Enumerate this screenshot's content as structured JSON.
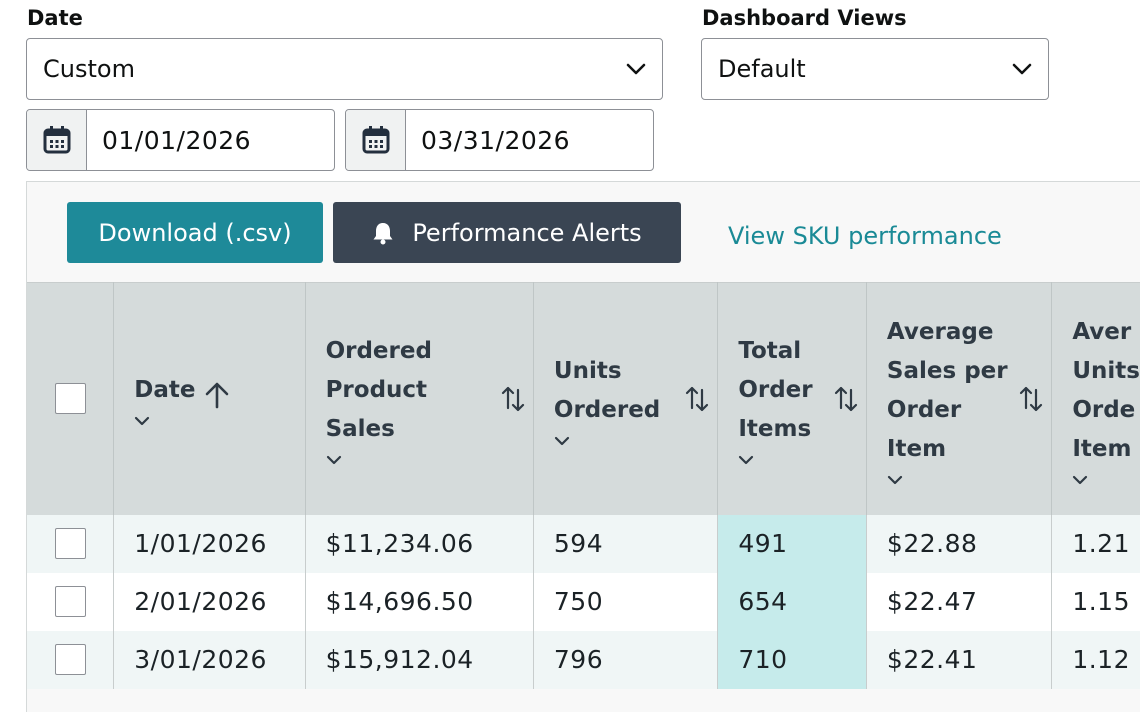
{
  "filters": {
    "date_label": "Date",
    "date_select": "Custom",
    "views_label": "Dashboard Views",
    "views_select": "Default",
    "start_date": "01/01/2026",
    "end_date": "03/31/2026"
  },
  "toolbar": {
    "download_label": "Download (.csv)",
    "alerts_label": "Performance Alerts",
    "sku_link": "View SKU performance"
  },
  "table": {
    "columns": [
      {
        "line1": "Date"
      },
      {
        "line1": "Ordered",
        "line2": "Product",
        "line3": "Sales"
      },
      {
        "line1": "Units",
        "line2": "Ordered"
      },
      {
        "line1": "Total",
        "line2": "Order",
        "line3": "Items"
      },
      {
        "line1": "Average",
        "line2": "Sales per",
        "line3": "Order",
        "line4": "Item"
      },
      {
        "line1": "Aver",
        "line2": "Units",
        "line3": "Orde",
        "line4": "Item"
      }
    ],
    "rows": [
      [
        "1/01/2026",
        "$11,234.06",
        "594",
        "491",
        "$22.88",
        "1.21"
      ],
      [
        "2/01/2026",
        "$14,696.50",
        "750",
        "654",
        "$22.47",
        "1.15"
      ],
      [
        "3/01/2026",
        "$15,912.04",
        "796",
        "710",
        "$22.41",
        "1.12"
      ]
    ]
  },
  "colors": {
    "accent": "#1e8a99",
    "dark_button": "#3a4553",
    "link": "#1a8a96",
    "highlight_cell": "#c6ebeb",
    "header_bg": "#d5dbdb"
  }
}
